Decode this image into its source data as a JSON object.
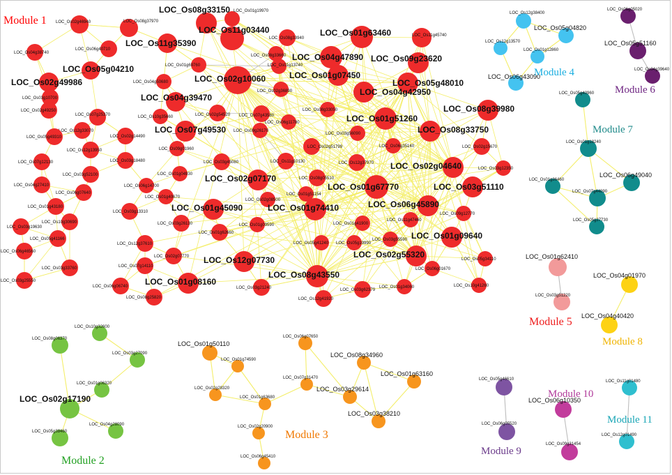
{
  "modules": [
    {
      "id": "m1",
      "label": "Module 1",
      "color": "#ff0000",
      "node_color": "#ee2b2b"
    },
    {
      "id": "m2",
      "label": "Module 2",
      "color": "#22a022",
      "node_color": "#76c442"
    },
    {
      "id": "m3",
      "label": "Module 3",
      "color": "#f07800",
      "node_color": "#f7951e"
    },
    {
      "id": "m4",
      "label": "Module 4",
      "color": "#1aaee0",
      "node_color": "#44c3f0"
    },
    {
      "id": "m5",
      "label": "Module 5",
      "color": "#ee1c1c",
      "node_color": "#f29a9a"
    },
    {
      "id": "m6",
      "label": "Module 6",
      "color": "#6e2582",
      "node_color": "#6a1f6e"
    },
    {
      "id": "m7",
      "label": "Module 7",
      "color": "#1f8a8a",
      "node_color": "#118c8c"
    },
    {
      "id": "m8",
      "label": "Module 8",
      "color": "#f0b400",
      "node_color": "#fdd214"
    },
    {
      "id": "m9",
      "label": "Module 9",
      "color": "#6a3a8a",
      "node_color": "#7e54a2"
    },
    {
      "id": "m10",
      "label": "Module 10",
      "color": "#b03a9a",
      "node_color": "#c23c9c"
    },
    {
      "id": "m11",
      "label": "Module 11",
      "color": "#1aa6b6",
      "node_color": "#2fbfcf"
    }
  ],
  "nodes": {
    "m1": [
      "LOC_Os08g33150",
      "LOC_Os01g19970",
      "LOC_Os02g46940",
      "LOC_Os08g37970",
      "LOC_Os11g03440",
      "LOC_Os08g33940",
      "LOC_Os01g63460",
      "LOC_Os11g45740",
      "LOC_Os04g38740",
      "LOC_Os06g40710",
      "LOC_Os11g35390",
      "LOC_Os08g33660",
      "LOC_Os04g47890",
      "LOC_Os09g23620",
      "LOC_Os01g69760",
      "LOC_Os01g13740",
      "LOC_Os05g04210",
      "LOC_Os02g10060",
      "LOC_Os01g07450",
      "LOC_Os02g49986",
      "LOC_Os04g50680",
      "LOC_Os05g48010",
      "LOC_Os02g36890",
      "LOC_Os03g10700",
      "LOC_Os04g39470",
      "LOC_Os04g42950",
      "LOC_Os08g39980",
      "LOC_Os02g49250",
      "LOC_Os07g25370",
      "LOC_Os10g35660",
      "LOC_Os02g54520",
      "LOC_Os07g43580",
      "LOC_Os08g33050",
      "LOC_Os06g11780",
      "LOC_Os01g51260",
      "LOC_Os12g33070",
      "LOC_Os05g49310",
      "LOC_Os02g14490",
      "LOC_Os07g49530",
      "LOC_Os09g26170",
      "LOC_Os03g56090",
      "LOC_Os08g33750",
      "LOC_Os12g13950",
      "LOC_Os03g18480",
      "LOC_Os09g01960",
      "LOC_Os02g51799",
      "LOC_Os06g35140",
      "LOC_Os02g15670",
      "LOC_Os07g12130",
      "LOC_Os03g52100",
      "LOC_Os03g45080",
      "LOC_Os11g10130",
      "LOC_Os12g37970",
      "LOC_Os02g04640",
      "LOC_Os03g12350",
      "LOC_Os01g04930",
      "LOC_Os04g27410",
      "LOC_Os06g14700",
      "LOC_Os02g07170",
      "LOC_Os08g05510",
      "LOC_Os06g07640",
      "LOC_Os01g51154",
      "LOC_Os01g67770",
      "LOC_Os03g51110",
      "LOC_Os01g43180",
      "LOC_Os01g40670",
      "LOC_Os02g08500",
      "LOC_Os06g45890",
      "LOC_Os01g45090",
      "LOC_Os01g74410",
      "LOC_Os10g30690",
      "LOC_Os03g13310",
      "LOC_Os09g12770",
      "LOC_Os03g19630",
      "LOC_Os03g26130",
      "LOC_Os01g41900",
      "LOC_Os11g47460",
      "LOC_Os01g62660",
      "LOC_Os01g09590",
      "LOC_Os05g41166",
      "LOC_Os12g37610",
      "LOC_Os01g09640",
      "LOC_Os05g41240",
      "LOC_Os05g19990",
      "LOC_Os03g55590",
      "LOC_Os06g46560",
      "LOC_Os02g55320",
      "LOC_Os02g07770",
      "LOC_Os03g33760",
      "LOC_Os07g14110",
      "LOC_Os12g07730",
      "LOC_Os06g01670",
      "LOC_Os05g34110",
      "LOC_Os03g25550",
      "LOC_Os08g43550",
      "LOC_Os06g06740",
      "LOC_Os01g08160",
      "LOC_Os10g41260",
      "LOC_Os03g21240",
      "LOC_Os01g34060",
      "LOC_Os03g62379",
      "LOC_Os08g25820",
      "LOC_Os12g41920"
    ],
    "m2": [
      "LOC_Os10g32600",
      "LOC_Os08g06370",
      "LOC_Os03g27090",
      "LOC_Os01g06320",
      "LOC_Os02g17190",
      "LOC_Os05g38460",
      "LOC_Os04g28090"
    ],
    "m3": [
      "LOC_Os01g50110",
      "LOC_Os06g07650",
      "LOC_Os01g74590",
      "LOC_Os08g34960",
      "LOC_Os07g31470",
      "LOC_Os02g28320",
      "LOC_Os01g63160",
      "LOC_Os03g29614",
      "LOC_Os01g63680",
      "LOC_Os03g38210",
      "LOC_Os02g20900",
      "LOC_Os06g45410"
    ],
    "m4": [
      "LOC_Os12g38400",
      "LOC_Os05g04820",
      "LOC_Os12g13570",
      "LOC_Os01g12860",
      "LOC_Os06g43090"
    ],
    "m5": [
      "LOC_Os01g62410",
      "LOC_Os03g51220"
    ],
    "m6": [
      "LOC_Os06g05020",
      "LOC_Os05g51160",
      "LOC_Os04g39640"
    ],
    "m7": [
      "LOC_Os05g40960",
      "LOC_Os01g18240",
      "LOC_Os01g36460",
      "LOC_Os06g49040",
      "LOC_Os07g44090",
      "LOC_Os05g37730"
    ],
    "m8": [
      "LOC_Os04g01970",
      "LOC_Os04g40420"
    ],
    "m9": [
      "LOC_Os05g46610",
      "LOC_Os06g05520"
    ],
    "m10": [
      "LOC_Os06g10350",
      "LOC_Os09g31454"
    ],
    "m11": [
      "LOC_Os11g01480",
      "LOC_Os12g01490"
    ]
  },
  "edges": {
    "m2": [
      [
        "LOC_Os10g32600",
        "LOC_Os03g27090"
      ],
      [
        "LOC_Os03g27090",
        "LOC_Os01g06320"
      ],
      [
        "LOC_Os01g06320",
        "LOC_Os02g17190"
      ],
      [
        "LOC_Os08g06370",
        "LOC_Os02g17190"
      ],
      [
        "LOC_Os02g17190",
        "LOC_Os05g38460"
      ],
      [
        "LOC_Os02g17190",
        "LOC_Os04g28090"
      ]
    ],
    "m3": [
      [
        "LOC_Os01g50110",
        "LOC_Os01g74590"
      ],
      [
        "LOC_Os01g50110",
        "LOC_Os02g28320"
      ],
      [
        "LOC_Os01g74590",
        "LOC_Os01g63680"
      ],
      [
        "LOC_Os02g28320",
        "LOC_Os01g63680"
      ],
      [
        "LOC_Os01g74590",
        "LOC_Os02g28320"
      ],
      [
        "LOC_Os06g07650",
        "LOC_Os07g31470"
      ],
      [
        "LOC_Os06g07650",
        "LOC_Os03g29614"
      ],
      [
        "LOC_Os07g31470",
        "LOC_Os01g63680"
      ],
      [
        "LOC_Os07g31470",
        "LOC_Os03g29614"
      ],
      [
        "LOC_Os08g34960",
        "LOC_Os03g29614"
      ],
      [
        "LOC_Os08g34960",
        "LOC_Os01g63160"
      ],
      [
        "LOC_Os03g29614",
        "LOC_Os03g38210"
      ],
      [
        "LOC_Os01g63160",
        "LOC_Os03g38210"
      ],
      [
        "LOC_Os01g63680",
        "LOC_Os02g20900"
      ],
      [
        "LOC_Os02g20900",
        "LOC_Os06g45410"
      ],
      [
        "LOC_Os08g34960",
        "LOC_Os03g38210"
      ]
    ],
    "m4": [
      [
        "LOC_Os12g38400",
        "LOC_Os05g04820"
      ],
      [
        "LOC_Os12g38400",
        "LOC_Os12g13570"
      ],
      [
        "LOC_Os12g38400",
        "LOC_Os01g12860"
      ],
      [
        "LOC_Os05g04820",
        "LOC_Os01g12860"
      ],
      [
        "LOC_Os12g13570",
        "LOC_Os06g43090"
      ],
      [
        "LOC_Os01g12860",
        "LOC_Os06g43090"
      ]
    ],
    "m5": [
      [
        "LOC_Os01g62410",
        "LOC_Os03g51220"
      ]
    ],
    "m6": [
      [
        "LOC_Os06g05020",
        "LOC_Os05g51160"
      ],
      [
        "LOC_Os05g51160",
        "LOC_Os04g39640"
      ]
    ],
    "m7": [
      [
        "LOC_Os05g40960",
        "LOC_Os01g18240"
      ],
      [
        "LOC_Os01g18240",
        "LOC_Os01g36460"
      ],
      [
        "LOC_Os01g18240",
        "LOC_Os06g49040"
      ],
      [
        "LOC_Os01g18240",
        "LOC_Os07g44090"
      ],
      [
        "LOC_Os01g36460",
        "LOC_Os07g44090"
      ],
      [
        "LOC_Os06g49040",
        "LOC_Os07g44090"
      ],
      [
        "LOC_Os07g44090",
        "LOC_Os05g37730"
      ],
      [
        "LOC_Os01g36460",
        "LOC_Os05g37730"
      ]
    ],
    "m8": [
      [
        "LOC_Os04g01970",
        "LOC_Os04g40420"
      ]
    ],
    "m9": [
      [
        "LOC_Os05g46610",
        "LOC_Os06g05520"
      ]
    ],
    "m10": [
      [
        "LOC_Os06g10350",
        "LOC_Os09g31454"
      ]
    ],
    "m11": [
      [
        "LOC_Os11g01480",
        "LOC_Os12g01490"
      ]
    ]
  },
  "edge_colors": {
    "default": "#f4ee6a",
    "gray": "#bdbdbd"
  }
}
